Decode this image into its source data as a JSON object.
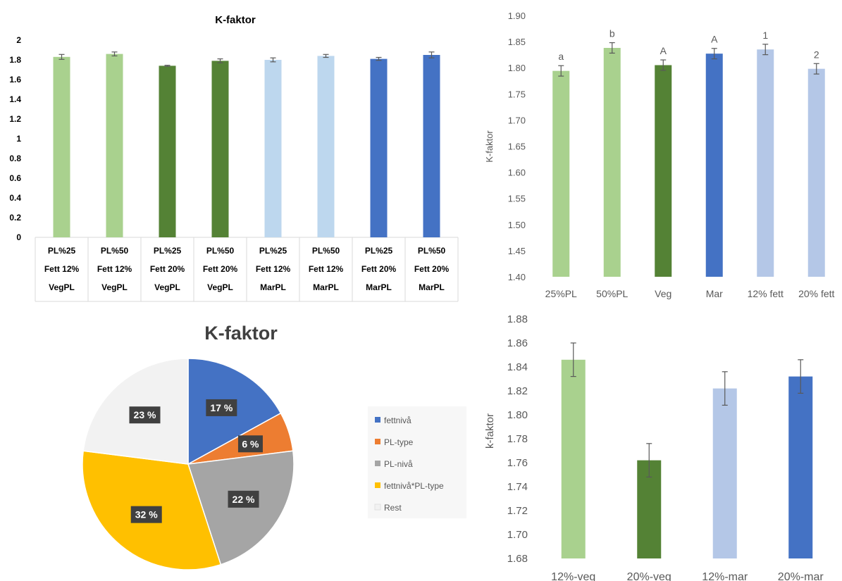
{
  "chart_data": [
    {
      "type": "bar",
      "title": "K-faktor",
      "ylim": [
        0,
        2
      ],
      "yticks": [
        "0",
        "0.2",
        "0.4",
        "0.6",
        "0.8",
        "1",
        "1.2",
        "1.4",
        "1.6",
        "1.8",
        "2"
      ],
      "grid": false,
      "categories": [
        [
          "PL%25",
          "Fett 12%",
          "VegPL"
        ],
        [
          "PL%50",
          "Fett 12%",
          "VegPL"
        ],
        [
          "PL%25",
          "Fett 20%",
          "VegPL"
        ],
        [
          "PL%50",
          "Fett 20%",
          "VegPL"
        ],
        [
          "PL%25",
          "Fett 12%",
          "MarPL"
        ],
        [
          "PL%50",
          "Fett 12%",
          "MarPL"
        ],
        [
          "PL%25",
          "Fett 20%",
          "MarPL"
        ],
        [
          "PL%50",
          "Fett 20%",
          "MarPL"
        ]
      ],
      "values": [
        1.83,
        1.86,
        1.74,
        1.79,
        1.8,
        1.84,
        1.81,
        1.85
      ],
      "errors": [
        0.025,
        0.02,
        0.005,
        0.02,
        0.02,
        0.015,
        0.015,
        0.03
      ],
      "colors": [
        "#a9d18e",
        "#a9d18e",
        "#548235",
        "#548235",
        "#bdd7ee",
        "#bdd7ee",
        "#4472c4",
        "#4472c4"
      ]
    },
    {
      "type": "bar",
      "title": "",
      "ylabel": "K-faktor",
      "ylim": [
        1.4,
        1.9
      ],
      "yticks": [
        "1.40",
        "1.45",
        "1.50",
        "1.55",
        "1.60",
        "1.65",
        "1.70",
        "1.75",
        "1.80",
        "1.85",
        "1.90"
      ],
      "grid": false,
      "categories": [
        "25%PL",
        "50%PL",
        "Veg",
        "Mar",
        "12% fett",
        "20% fett"
      ],
      "values": [
        1.794,
        1.838,
        1.805,
        1.827,
        1.835,
        1.798
      ],
      "errors": [
        0.01,
        0.01,
        0.01,
        0.01,
        0.01,
        0.01
      ],
      "annotations": [
        "a",
        "b",
        "A",
        "A",
        "1",
        "2"
      ],
      "colors": [
        "#a9d18e",
        "#a9d18e",
        "#548235",
        "#4472c4",
        "#b4c7e7",
        "#b4c7e7"
      ]
    },
    {
      "type": "pie",
      "title": "K-faktor",
      "categories": [
        "fettnivå",
        "PL-type",
        "PL-nivå",
        "fettnivå*PL-type",
        "Rest"
      ],
      "values": [
        17,
        6,
        22,
        32,
        23
      ],
      "labels": [
        "17 %",
        "6 %",
        "22 %",
        "32 %",
        "23 %"
      ],
      "colors": [
        "#4472c4",
        "#ed7d31",
        "#a5a5a5",
        "#ffc000",
        "#f2f2f2"
      ],
      "legend": "right"
    },
    {
      "type": "bar",
      "title": "",
      "ylabel": "k-faktor",
      "ylim": [
        1.68,
        1.88
      ],
      "yticks": [
        "1.68",
        "1.70",
        "1.72",
        "1.74",
        "1.76",
        "1.78",
        "1.80",
        "1.82",
        "1.84",
        "1.86",
        "1.88"
      ],
      "grid": false,
      "categories": [
        "12%-veg",
        "20%-veg",
        "12%-mar",
        "20%-mar"
      ],
      "values": [
        1.846,
        1.762,
        1.822,
        1.832
      ],
      "errors": [
        0.014,
        0.014,
        0.014,
        0.014
      ],
      "colors": [
        "#a9d18e",
        "#548235",
        "#b4c7e7",
        "#4472c4"
      ]
    }
  ]
}
